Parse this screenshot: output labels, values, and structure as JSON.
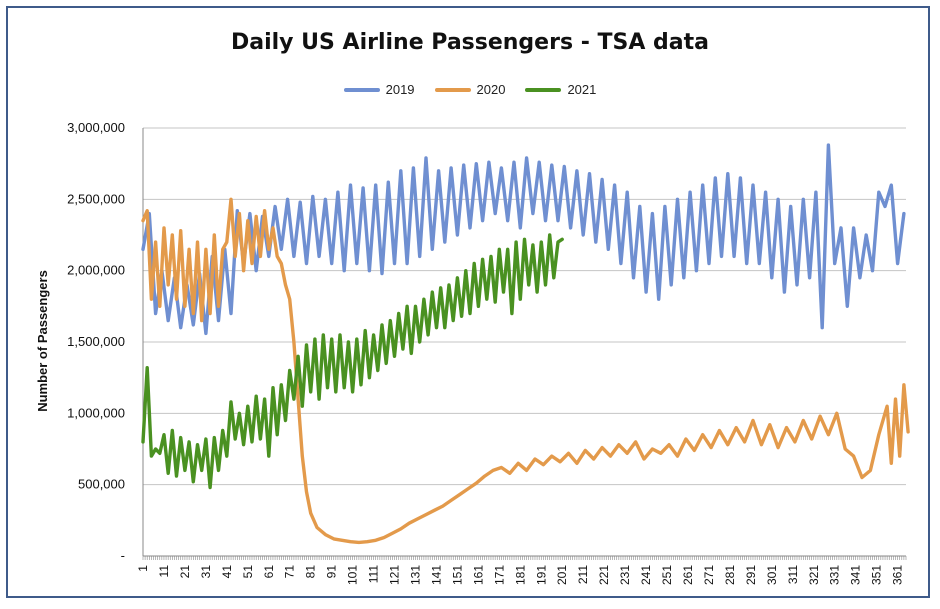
{
  "chart_data": {
    "type": "line",
    "title": "Daily US Airline Passengers - TSA data",
    "xlabel": "",
    "ylabel": "Number of Passengers",
    "xlim": [
      1,
      365
    ],
    "ylim": [
      0,
      3000000
    ],
    "yticks": [
      0,
      500000,
      1000000,
      1500000,
      2000000,
      2500000,
      3000000
    ],
    "ytick_labels": [
      "-",
      "500,000",
      "1,000,000",
      "1,500,000",
      "2,000,000",
      "2,500,000",
      "3,000,000"
    ],
    "xticks": [
      1,
      11,
      21,
      31,
      41,
      51,
      61,
      71,
      81,
      91,
      101,
      111,
      121,
      131,
      141,
      151,
      161,
      171,
      181,
      191,
      201,
      211,
      221,
      231,
      241,
      251,
      261,
      271,
      281,
      291,
      301,
      311,
      321,
      331,
      341,
      351,
      361
    ],
    "grid": true,
    "legend_position": "top",
    "series": [
      {
        "name": "2019",
        "color": "#6f8fd1",
        "x": [
          1,
          4,
          7,
          10,
          13,
          16,
          19,
          22,
          25,
          28,
          31,
          34,
          37,
          40,
          43,
          46,
          49,
          52,
          55,
          58,
          61,
          64,
          67,
          70,
          73,
          76,
          79,
          82,
          85,
          88,
          91,
          94,
          97,
          100,
          103,
          106,
          109,
          112,
          115,
          118,
          121,
          124,
          127,
          130,
          133,
          136,
          139,
          142,
          145,
          148,
          151,
          154,
          157,
          160,
          163,
          166,
          169,
          172,
          175,
          178,
          181,
          184,
          187,
          190,
          193,
          196,
          199,
          202,
          205,
          208,
          211,
          214,
          217,
          220,
          223,
          226,
          229,
          232,
          235,
          238,
          241,
          244,
          247,
          250,
          253,
          256,
          259,
          262,
          265,
          268,
          271,
          274,
          277,
          280,
          283,
          286,
          289,
          292,
          295,
          298,
          301,
          304,
          307,
          310,
          313,
          316,
          319,
          322,
          325,
          328,
          331,
          334,
          337,
          340,
          343,
          346,
          349,
          352,
          355,
          358,
          361,
          364
        ],
        "values": [
          2150000,
          2400000,
          1700000,
          2000000,
          1650000,
          1950000,
          1600000,
          1900000,
          1620000,
          1980000,
          1560000,
          2100000,
          1650000,
          2150000,
          1700000,
          2420000,
          2050000,
          2400000,
          2000000,
          2380000,
          2100000,
          2450000,
          2150000,
          2500000,
          2100000,
          2480000,
          2050000,
          2520000,
          2100000,
          2500000,
          2050000,
          2550000,
          2000000,
          2600000,
          2050000,
          2580000,
          2000000,
          2600000,
          1980000,
          2620000,
          2050000,
          2700000,
          2050000,
          2720000,
          2100000,
          2790000,
          2150000,
          2700000,
          2200000,
          2720000,
          2250000,
          2740000,
          2300000,
          2750000,
          2350000,
          2760000,
          2400000,
          2720000,
          2350000,
          2760000,
          2300000,
          2790000,
          2400000,
          2760000,
          2350000,
          2740000,
          2350000,
          2730000,
          2300000,
          2700000,
          2250000,
          2680000,
          2200000,
          2640000,
          2150000,
          2600000,
          2050000,
          2550000,
          1950000,
          2450000,
          1850000,
          2400000,
          1800000,
          2450000,
          1900000,
          2500000,
          1950000,
          2550000,
          2000000,
          2600000,
          2050000,
          2650000,
          2100000,
          2680000,
          2100000,
          2650000,
          2050000,
          2600000,
          2050000,
          2550000,
          1950000,
          2500000,
          1850000,
          2450000,
          1900000,
          2500000,
          1950000,
          2550000,
          1600000,
          2880000,
          2050000,
          2300000,
          1750000,
          2300000,
          1950000,
          2250000,
          2000000,
          2550000,
          2450000,
          2600000,
          2050000,
          2400000
        ]
      },
      {
        "name": "2020",
        "color": "#e39a4b",
        "x": [
          1,
          3,
          5,
          7,
          9,
          11,
          13,
          15,
          17,
          19,
          21,
          23,
          25,
          27,
          29,
          31,
          33,
          35,
          37,
          39,
          41,
          43,
          45,
          47,
          49,
          51,
          53,
          55,
          57,
          59,
          61,
          63,
          65,
          67,
          69,
          71,
          73,
          75,
          77,
          79,
          81,
          84,
          88,
          92,
          96,
          100,
          104,
          108,
          112,
          116,
          120,
          124,
          128,
          132,
          136,
          140,
          144,
          148,
          152,
          156,
          160,
          164,
          168,
          172,
          176,
          180,
          184,
          188,
          192,
          196,
          200,
          204,
          208,
          212,
          216,
          220,
          224,
          228,
          232,
          236,
          240,
          244,
          248,
          252,
          256,
          260,
          264,
          268,
          272,
          276,
          280,
          284,
          288,
          292,
          296,
          300,
          304,
          308,
          312,
          316,
          320,
          324,
          328,
          332,
          336,
          340,
          344,
          348,
          352,
          356,
          358,
          360,
          362,
          364,
          366
        ],
        "values": [
          2350000,
          2420000,
          1800000,
          2200000,
          1750000,
          2300000,
          1900000,
          2250000,
          1800000,
          2280000,
          1750000,
          2150000,
          1700000,
          2200000,
          1650000,
          2150000,
          1700000,
          2250000,
          1750000,
          2150000,
          2200000,
          2500000,
          2100000,
          2400000,
          2000000,
          2350000,
          2050000,
          2380000,
          2100000,
          2420000,
          2150000,
          2300000,
          2100000,
          2050000,
          1900000,
          1800000,
          1500000,
          1100000,
          700000,
          450000,
          300000,
          200000,
          150000,
          120000,
          110000,
          100000,
          95000,
          100000,
          110000,
          130000,
          160000,
          190000,
          230000,
          260000,
          290000,
          320000,
          350000,
          390000,
          430000,
          470000,
          510000,
          560000,
          600000,
          620000,
          580000,
          650000,
          600000,
          680000,
          640000,
          700000,
          660000,
          720000,
          650000,
          740000,
          680000,
          760000,
          700000,
          780000,
          720000,
          800000,
          680000,
          750000,
          720000,
          780000,
          700000,
          820000,
          740000,
          850000,
          760000,
          880000,
          780000,
          900000,
          800000,
          950000,
          780000,
          920000,
          760000,
          900000,
          800000,
          950000,
          820000,
          980000,
          850000,
          1000000,
          750000,
          700000,
          550000,
          600000,
          850000,
          1050000,
          650000,
          1100000,
          700000,
          1200000,
          870000
        ]
      },
      {
        "name": "2021",
        "color": "#4a9121",
        "x": [
          1,
          3,
          5,
          7,
          9,
          11,
          13,
          15,
          17,
          19,
          21,
          23,
          25,
          27,
          29,
          31,
          33,
          35,
          37,
          39,
          41,
          43,
          45,
          47,
          49,
          51,
          53,
          55,
          57,
          59,
          61,
          63,
          65,
          67,
          69,
          71,
          73,
          75,
          77,
          79,
          81,
          83,
          85,
          87,
          89,
          91,
          93,
          95,
          97,
          99,
          101,
          103,
          105,
          107,
          109,
          111,
          113,
          115,
          117,
          119,
          121,
          123,
          125,
          127,
          129,
          131,
          133,
          135,
          137,
          139,
          141,
          143,
          145,
          147,
          149,
          151,
          153,
          155,
          157,
          159,
          161,
          163,
          165,
          167,
          169,
          171,
          173,
          175,
          177,
          179,
          181,
          183,
          185,
          187,
          189,
          191,
          193,
          195,
          197,
          199,
          201
        ],
        "values": [
          800000,
          1320000,
          700000,
          750000,
          720000,
          850000,
          580000,
          880000,
          560000,
          830000,
          600000,
          800000,
          520000,
          780000,
          600000,
          820000,
          480000,
          830000,
          600000,
          880000,
          700000,
          1080000,
          820000,
          1000000,
          780000,
          1050000,
          800000,
          1120000,
          820000,
          1100000,
          700000,
          1180000,
          850000,
          1200000,
          950000,
          1300000,
          1100000,
          1400000,
          1050000,
          1480000,
          1150000,
          1520000,
          1100000,
          1550000,
          1180000,
          1520000,
          1150000,
          1550000,
          1180000,
          1500000,
          1150000,
          1520000,
          1200000,
          1580000,
          1250000,
          1550000,
          1300000,
          1620000,
          1350000,
          1650000,
          1400000,
          1700000,
          1450000,
          1750000,
          1420000,
          1750000,
          1500000,
          1800000,
          1550000,
          1850000,
          1600000,
          1880000,
          1600000,
          1900000,
          1650000,
          1950000,
          1680000,
          2000000,
          1700000,
          2050000,
          1750000,
          2080000,
          1800000,
          2100000,
          1780000,
          2150000,
          1850000,
          2150000,
          1700000,
          2200000,
          1800000,
          2220000,
          1900000,
          2180000,
          1850000,
          2200000,
          1900000,
          2250000,
          1950000,
          2200000,
          2220000
        ]
      }
    ]
  }
}
